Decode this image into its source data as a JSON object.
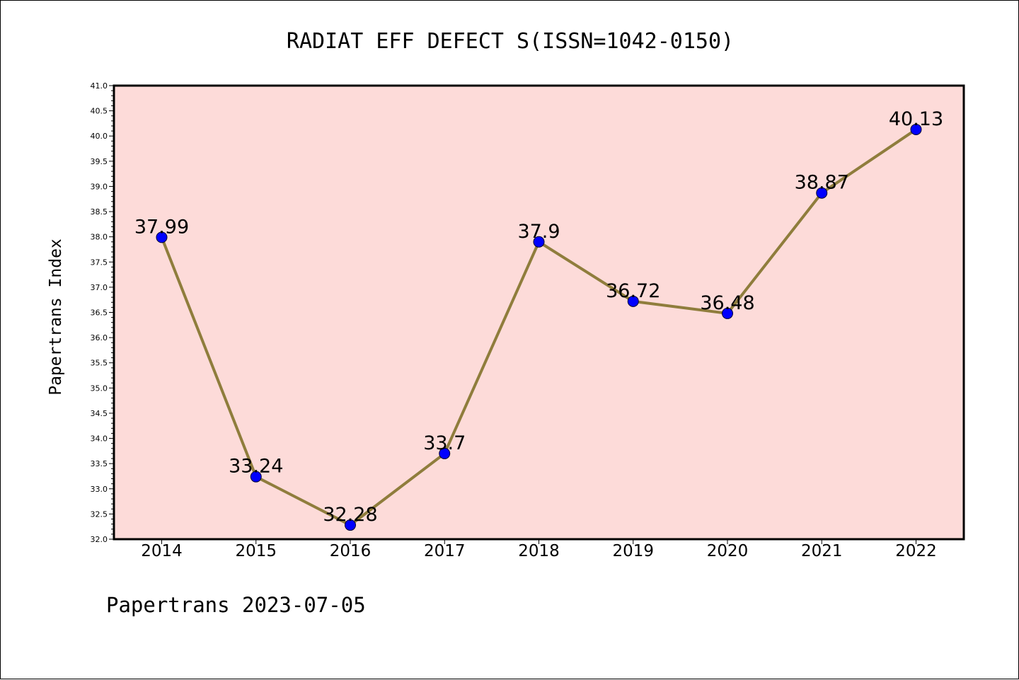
{
  "chart_data": {
    "type": "line",
    "title": "RADIAT EFF DEFECT S(ISSN=1042-0150)",
    "xlabel": "",
    "ylabel": "Papertrans Index",
    "categories": [
      "2014",
      "2015",
      "2016",
      "2017",
      "2018",
      "2019",
      "2020",
      "2021",
      "2022"
    ],
    "values": [
      37.99,
      33.24,
      32.28,
      33.7,
      37.9,
      36.72,
      36.48,
      38.87,
      40.13
    ],
    "data_labels": [
      "37.99",
      "33.24",
      "32.28",
      "33.7",
      "37.9",
      "36.72",
      "36.48",
      "38.87",
      "40.13"
    ],
    "ylim": [
      32.0,
      41.0
    ],
    "yticks": [
      "32.0",
      "32.5",
      "33.0",
      "33.5",
      "34.0",
      "34.5",
      "35.0",
      "35.5",
      "36.0",
      "36.5",
      "37.0",
      "37.5",
      "38.0",
      "38.5",
      "39.0",
      "39.5",
      "40.0",
      "40.5",
      "41.0"
    ],
    "grid": false,
    "legend": "none",
    "colors": {
      "plot_background": "#fddbd9",
      "line": "#8f7d3c",
      "marker": "#0000ff"
    }
  },
  "footer": {
    "text": "Papertrans 2023-07-05"
  }
}
